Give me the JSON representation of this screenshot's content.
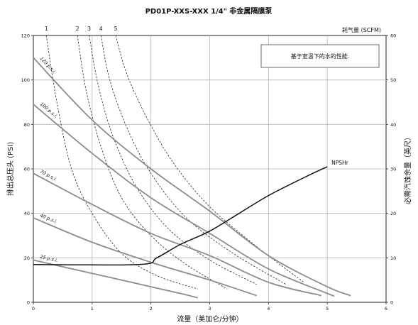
{
  "chart_data": {
    "type": "line",
    "title": "PD01P-XXS-XXX 1/4\" 非金属隔膜泵",
    "xlabel": "流量（美加仑/分钟）",
    "ylabel_left": "排出总压头 (PSI)",
    "ylabel_right": "必需汽蚀余量（英尺）",
    "top_axis_label": "耗气量 (SCFM)",
    "note": "基于室温下的水的性能.",
    "xlim": [
      0,
      6
    ],
    "ylim_left": [
      0,
      120
    ],
    "ylim_right": [
      0,
      60
    ],
    "x_ticks": [
      "0",
      "1",
      "2",
      "3",
      "4",
      "5",
      "6"
    ],
    "y_left_ticks": [
      "0",
      "20",
      "40",
      "60",
      "80",
      "100",
      "120"
    ],
    "y_right_ticks": [
      "0",
      "10",
      "20",
      "30",
      "40",
      "50",
      "60"
    ],
    "grid": true,
    "pressure_curves": [
      {
        "name": "120 p.s.i.",
        "points": [
          [
            0,
            110
          ],
          [
            1,
            82
          ],
          [
            2,
            60
          ],
          [
            3,
            41
          ],
          [
            4,
            21
          ],
          [
            5,
            7
          ],
          [
            5.4,
            3
          ]
        ]
      },
      {
        "name": "100 p.s.i.",
        "points": [
          [
            0,
            89
          ],
          [
            1,
            67
          ],
          [
            2,
            47
          ],
          [
            3,
            31
          ],
          [
            4,
            15
          ],
          [
            5,
            4
          ],
          [
            5.1,
            3
          ]
        ]
      },
      {
        "name": "70 p.s.i.",
        "points": [
          [
            0,
            58
          ],
          [
            1,
            44
          ],
          [
            2,
            31
          ],
          [
            3,
            21
          ],
          [
            4,
            9
          ],
          [
            4.9,
            3
          ]
        ]
      },
      {
        "name": "40 p.s.i.",
        "points": [
          [
            0,
            38
          ],
          [
            1,
            27
          ],
          [
            2,
            18
          ],
          [
            3,
            10
          ],
          [
            3.8,
            3
          ]
        ]
      },
      {
        "name": "25 p.s.i.",
        "points": [
          [
            0,
            19
          ],
          [
            1,
            13
          ],
          [
            2,
            7
          ],
          [
            2.5,
            4
          ],
          [
            2.8,
            2
          ]
        ]
      }
    ],
    "air_consumption_curves": [
      {
        "name": "1",
        "points": [
          [
            0.22,
            120
          ],
          [
            0.4,
            90
          ],
          [
            0.65,
            60
          ],
          [
            1,
            40
          ],
          [
            1.5,
            22
          ],
          [
            2.1,
            12
          ],
          [
            2.8,
            6
          ]
        ]
      },
      {
        "name": "2",
        "points": [
          [
            0.75,
            120
          ],
          [
            0.9,
            95
          ],
          [
            1.15,
            70
          ],
          [
            1.5,
            47
          ],
          [
            2.0,
            30
          ],
          [
            2.6,
            17
          ],
          [
            3.3,
            6
          ]
        ]
      },
      {
        "name": "3",
        "points": [
          [
            0.95,
            120
          ],
          [
            1.1,
            98
          ],
          [
            1.35,
            75
          ],
          [
            1.75,
            52
          ],
          [
            2.3,
            33
          ],
          [
            3.0,
            19
          ],
          [
            3.8,
            8
          ]
        ]
      },
      {
        "name": "4",
        "points": [
          [
            1.15,
            120
          ],
          [
            1.3,
            100
          ],
          [
            1.6,
            78
          ],
          [
            2.0,
            58
          ],
          [
            2.6,
            38
          ],
          [
            3.4,
            22
          ],
          [
            4.3,
            8
          ]
        ]
      },
      {
        "name": "5",
        "points": [
          [
            1.4,
            120
          ],
          [
            1.6,
            102
          ],
          [
            1.95,
            82
          ],
          [
            2.4,
            62
          ],
          [
            3.0,
            43
          ],
          [
            3.8,
            25
          ],
          [
            4.6,
            9
          ]
        ]
      }
    ],
    "npshr_curve": {
      "name": "NPSHr",
      "points": [
        [
          0,
          8.5
        ],
        [
          1.8,
          8.5
        ],
        [
          2.1,
          10
        ],
        [
          2.5,
          13
        ],
        [
          3,
          16
        ],
        [
          3.5,
          20
        ],
        [
          4,
          24
        ],
        [
          4.6,
          28
        ],
        [
          5,
          30.5
        ]
      ]
    }
  }
}
